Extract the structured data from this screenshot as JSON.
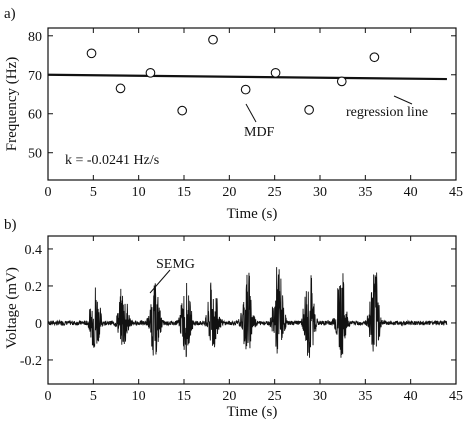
{
  "chart_data": [
    {
      "panel": "a)",
      "type": "scatter",
      "xlabel": "Time (s)",
      "ylabel": "Frequency (Hz)",
      "xlim": [
        0,
        45
      ],
      "ylim": [
        43,
        82
      ],
      "xticks": [
        0,
        5,
        10,
        15,
        20,
        25,
        30,
        35,
        40,
        45
      ],
      "yticks": [
        50,
        60,
        70,
        80
      ],
      "series": [
        {
          "name": "MDF",
          "x": [
            4.8,
            8.0,
            11.3,
            14.8,
            18.2,
            21.8,
            25.1,
            28.8,
            32.4,
            36.0
          ],
          "y": [
            75.5,
            66.5,
            70.5,
            60.8,
            79.0,
            66.2,
            70.5,
            61.0,
            68.3,
            74.5
          ]
        },
        {
          "name": "regression line",
          "x": [
            0,
            44
          ],
          "y": [
            70.0,
            68.9
          ]
        }
      ],
      "annotations": {
        "equation": "k = -0.0241 Hz/s",
        "mdf_label": "MDF",
        "regression_label": "regression line"
      }
    },
    {
      "panel": "b)",
      "type": "line",
      "xlabel": "Time (s)",
      "ylabel": "Voltage (mV)",
      "xlim": [
        0,
        45
      ],
      "ylim": [
        -0.33,
        0.47
      ],
      "xticks": [
        0,
        5,
        10,
        15,
        20,
        25,
        30,
        35,
        40,
        45
      ],
      "yticks": [
        -0.2,
        0,
        0.2,
        0.4
      ],
      "ytick_labels": [
        "-0.2",
        "0",
        "0.2",
        "0.4"
      ],
      "series": [
        {
          "name": "SEMG",
          "x_range": [
            0,
            44
          ],
          "bursts": [
            {
              "center": 5.2,
              "peak_pos": 0.24,
              "peak_neg": -0.16
            },
            {
              "center": 8.3,
              "peak_pos": 0.23,
              "peak_neg": -0.15
            },
            {
              "center": 11.8,
              "peak_pos": 0.22,
              "peak_neg": -0.2
            },
            {
              "center": 15.2,
              "peak_pos": 0.23,
              "peak_neg": -0.18
            },
            {
              "center": 18.2,
              "peak_pos": 0.28,
              "peak_neg": -0.17
            },
            {
              "center": 22.0,
              "peak_pos": 0.32,
              "peak_neg": -0.18
            },
            {
              "center": 25.4,
              "peak_pos": 0.34,
              "peak_neg": -0.19
            },
            {
              "center": 28.8,
              "peak_pos": 0.33,
              "peak_neg": -0.22
            },
            {
              "center": 32.3,
              "peak_pos": 0.32,
              "peak_neg": -0.2
            },
            {
              "center": 36.0,
              "peak_pos": 0.33,
              "peak_neg": -0.21
            }
          ],
          "baseline_noise": 0.012
        }
      ],
      "annotations": {
        "semg_label": "SEMG"
      }
    }
  ]
}
